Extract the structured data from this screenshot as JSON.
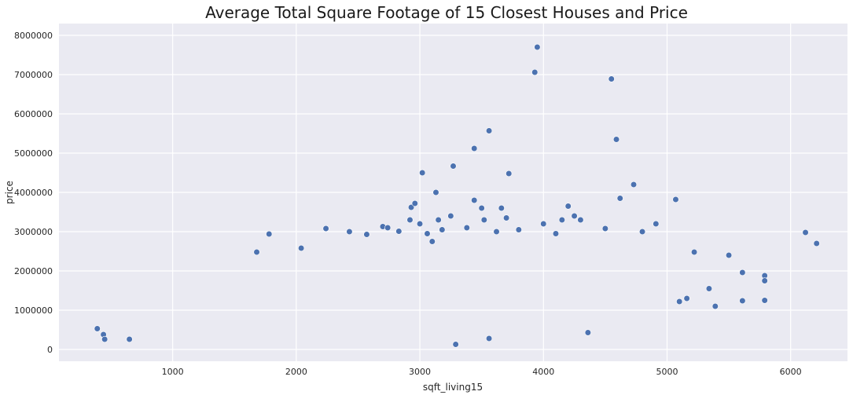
{
  "chart_data": {
    "type": "scatter",
    "title": "Average Total Square Footage of 15 Closest Houses and Price",
    "xlabel": "sqft_living15",
    "ylabel": "price",
    "xlim": [
      80,
      6460
    ],
    "ylim": [
      -300000,
      8300000
    ],
    "x_ticks": [
      1000,
      2000,
      3000,
      4000,
      5000,
      6000
    ],
    "y_ticks": [
      0,
      1000000,
      2000000,
      3000000,
      4000000,
      5000000,
      6000000,
      7000000,
      8000000
    ],
    "grid": true,
    "style": {
      "background": "#eaeaf2",
      "grid_color": "#ffffff",
      "marker_color": "#4c72b0",
      "marker_edge": "#ffffff"
    },
    "points": [
      [
        390,
        530000
      ],
      [
        440,
        380000
      ],
      [
        450,
        260000
      ],
      [
        650,
        260000
      ],
      [
        2240,
        3080000
      ],
      [
        2430,
        3000000
      ],
      [
        1780,
        2940000
      ],
      [
        1680,
        2480000
      ],
      [
        2040,
        2580000
      ],
      [
        2570,
        2930000
      ],
      [
        2700,
        3130000
      ],
      [
        2740,
        3100000
      ],
      [
        2920,
        3300000
      ],
      [
        2930,
        3620000
      ],
      [
        2960,
        3720000
      ],
      [
        3020,
        4500000
      ],
      [
        3130,
        4000000
      ],
      [
        3270,
        4670000
      ],
      [
        3440,
        5120000
      ],
      [
        3560,
        5570000
      ],
      [
        3720,
        4480000
      ],
      [
        3930,
        7060000
      ],
      [
        3950,
        7700000
      ],
      [
        4550,
        6890000
      ],
      [
        4590,
        5350000
      ],
      [
        4620,
        3850000
      ],
      [
        4730,
        4200000
      ],
      [
        5070,
        3820000
      ],
      [
        3440,
        3800000
      ],
      [
        3500,
        3600000
      ],
      [
        3660,
        3600000
      ],
      [
        4200,
        3650000
      ],
      [
        4250,
        3400000
      ],
      [
        4500,
        3080000
      ],
      [
        4910,
        3200000
      ],
      [
        6120,
        2980000
      ],
      [
        6210,
        2700000
      ],
      [
        5500,
        2400000
      ],
      [
        5220,
        2480000
      ],
      [
        5610,
        1960000
      ],
      [
        5790,
        1880000
      ],
      [
        5790,
        1750000
      ],
      [
        5610,
        1240000
      ],
      [
        5790,
        1250000
      ],
      [
        5340,
        1550000
      ],
      [
        5160,
        1300000
      ],
      [
        5100,
        1220000
      ],
      [
        5390,
        1100000
      ],
      [
        3290,
        130000
      ],
      [
        4360,
        430000
      ],
      [
        3560,
        280000
      ],
      [
        3000,
        3200000
      ],
      [
        3250,
        3400000
      ],
      [
        3380,
        3100000
      ],
      [
        4000,
        3200000
      ],
      [
        4100,
        2950000
      ],
      [
        3800,
        3050000
      ],
      [
        4800,
        3000000
      ],
      [
        4300,
        3300000
      ],
      [
        3700,
        3350000
      ],
      [
        3620,
        3000000
      ],
      [
        4150,
        3300000
      ],
      [
        2830,
        3010000
      ],
      [
        3060,
        2950000
      ],
      [
        3180,
        3050000
      ],
      [
        3520,
        3300000
      ],
      [
        3150,
        3300000
      ],
      [
        3100,
        2750000
      ]
    ]
  }
}
